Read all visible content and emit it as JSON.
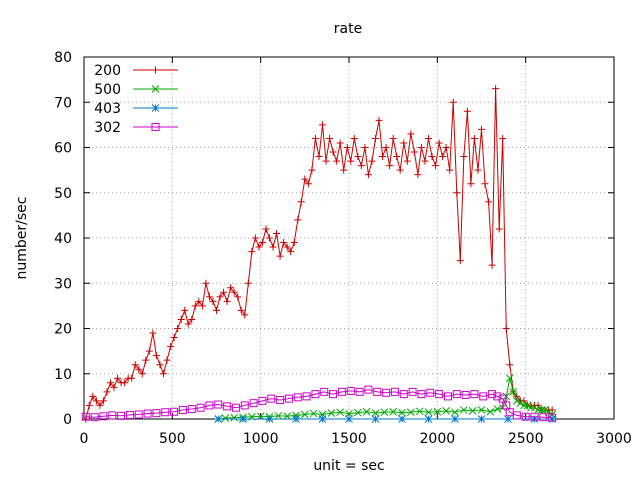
{
  "chart_data": {
    "type": "line",
    "title": "rate",
    "xlabel": "unit = sec",
    "ylabel": "number/sec",
    "xlim": [
      0,
      3000
    ],
    "ylim": [
      0,
      80
    ],
    "xticks": [
      0,
      500,
      1000,
      1500,
      2000,
      2500,
      3000
    ],
    "yticks": [
      0,
      10,
      20,
      30,
      40,
      50,
      60,
      70,
      80
    ],
    "grid": true,
    "legend_position": "top-left",
    "series": [
      {
        "name": "200",
        "color": "#cc0000",
        "marker": "plus",
        "points": [
          [
            10,
            0
          ],
          [
            30,
            3
          ],
          [
            50,
            5
          ],
          [
            70,
            4
          ],
          [
            90,
            3
          ],
          [
            110,
            4
          ],
          [
            130,
            6
          ],
          [
            150,
            8
          ],
          [
            170,
            7
          ],
          [
            190,
            9
          ],
          [
            210,
            8
          ],
          [
            230,
            8
          ],
          [
            250,
            9
          ],
          [
            270,
            9
          ],
          [
            290,
            12
          ],
          [
            310,
            11
          ],
          [
            330,
            10
          ],
          [
            350,
            13
          ],
          [
            370,
            15
          ],
          [
            390,
            19
          ],
          [
            410,
            14
          ],
          [
            430,
            12
          ],
          [
            450,
            10
          ],
          [
            470,
            13
          ],
          [
            490,
            16
          ],
          [
            510,
            18
          ],
          [
            530,
            20
          ],
          [
            550,
            22
          ],
          [
            570,
            24
          ],
          [
            590,
            21
          ],
          [
            610,
            22
          ],
          [
            630,
            25
          ],
          [
            650,
            26
          ],
          [
            670,
            25
          ],
          [
            690,
            30
          ],
          [
            710,
            27
          ],
          [
            730,
            26
          ],
          [
            750,
            24
          ],
          [
            770,
            27
          ],
          [
            790,
            28
          ],
          [
            810,
            26
          ],
          [
            830,
            29
          ],
          [
            850,
            28
          ],
          [
            870,
            27
          ],
          [
            890,
            24
          ],
          [
            910,
            23
          ],
          [
            930,
            30
          ],
          [
            950,
            37
          ],
          [
            970,
            40
          ],
          [
            990,
            38
          ],
          [
            1010,
            39
          ],
          [
            1030,
            42
          ],
          [
            1050,
            40
          ],
          [
            1070,
            38
          ],
          [
            1090,
            41
          ],
          [
            1110,
            36
          ],
          [
            1130,
            39
          ],
          [
            1150,
            38
          ],
          [
            1170,
            37
          ],
          [
            1190,
            39
          ],
          [
            1210,
            44
          ],
          [
            1230,
            48
          ],
          [
            1250,
            53
          ],
          [
            1270,
            52
          ],
          [
            1290,
            55
          ],
          [
            1310,
            62
          ],
          [
            1330,
            58
          ],
          [
            1350,
            65
          ],
          [
            1370,
            57
          ],
          [
            1390,
            62
          ],
          [
            1410,
            59
          ],
          [
            1430,
            57
          ],
          [
            1450,
            61
          ],
          [
            1470,
            55
          ],
          [
            1490,
            60
          ],
          [
            1510,
            57
          ],
          [
            1530,
            62
          ],
          [
            1550,
            58
          ],
          [
            1570,
            56
          ],
          [
            1590,
            60
          ],
          [
            1610,
            54
          ],
          [
            1630,
            57
          ],
          [
            1650,
            62
          ],
          [
            1670,
            66
          ],
          [
            1690,
            58
          ],
          [
            1710,
            60
          ],
          [
            1730,
            56
          ],
          [
            1750,
            62
          ],
          [
            1770,
            58
          ],
          [
            1790,
            55
          ],
          [
            1810,
            61
          ],
          [
            1830,
            57
          ],
          [
            1850,
            63
          ],
          [
            1870,
            59
          ],
          [
            1890,
            54
          ],
          [
            1910,
            60
          ],
          [
            1930,
            57
          ],
          [
            1950,
            62
          ],
          [
            1970,
            58
          ],
          [
            1990,
            56
          ],
          [
            2010,
            61
          ],
          [
            2030,
            58
          ],
          [
            2050,
            60
          ],
          [
            2070,
            55
          ],
          [
            2090,
            70
          ],
          [
            2110,
            50
          ],
          [
            2130,
            35
          ],
          [
            2150,
            58
          ],
          [
            2170,
            68
          ],
          [
            2190,
            52
          ],
          [
            2210,
            62
          ],
          [
            2230,
            55
          ],
          [
            2250,
            64
          ],
          [
            2270,
            52
          ],
          [
            2290,
            48
          ],
          [
            2310,
            34
          ],
          [
            2330,
            73
          ],
          [
            2350,
            42
          ],
          [
            2370,
            62
          ],
          [
            2390,
            20
          ],
          [
            2410,
            12
          ],
          [
            2430,
            6
          ],
          [
            2450,
            5
          ],
          [
            2470,
            4
          ],
          [
            2490,
            4
          ],
          [
            2510,
            3
          ],
          [
            2530,
            3
          ],
          [
            2550,
            3
          ],
          [
            2570,
            3
          ],
          [
            2590,
            2
          ],
          [
            2610,
            2
          ],
          [
            2630,
            2
          ],
          [
            2650,
            2
          ]
        ]
      },
      {
        "name": "500",
        "color": "#00aa00",
        "marker": "cross",
        "points": [
          [
            760,
            0
          ],
          [
            800,
            0.2
          ],
          [
            850,
            0.3
          ],
          [
            900,
            0.4
          ],
          [
            950,
            0.5
          ],
          [
            1000,
            0.6
          ],
          [
            1050,
            0.5
          ],
          [
            1100,
            0.7
          ],
          [
            1150,
            0.6
          ],
          [
            1200,
            0.8
          ],
          [
            1250,
            1
          ],
          [
            1300,
            1.2
          ],
          [
            1350,
            1
          ],
          [
            1400,
            1.3
          ],
          [
            1450,
            1.5
          ],
          [
            1500,
            1.2
          ],
          [
            1550,
            1.4
          ],
          [
            1600,
            1.6
          ],
          [
            1650,
            1.3
          ],
          [
            1700,
            1.5
          ],
          [
            1750,
            1.6
          ],
          [
            1800,
            1.4
          ],
          [
            1850,
            1.5
          ],
          [
            1900,
            1.7
          ],
          [
            1950,
            1.5
          ],
          [
            2000,
            1.6
          ],
          [
            2050,
            1.8
          ],
          [
            2100,
            1.5
          ],
          [
            2150,
            2
          ],
          [
            2200,
            1.8
          ],
          [
            2250,
            2
          ],
          [
            2300,
            1.6
          ],
          [
            2340,
            2.2
          ],
          [
            2370,
            2.5
          ],
          [
            2390,
            5
          ],
          [
            2410,
            9
          ],
          [
            2430,
            6
          ],
          [
            2450,
            4
          ],
          [
            2470,
            3.5
          ],
          [
            2490,
            3
          ],
          [
            2510,
            3
          ],
          [
            2530,
            2.5
          ],
          [
            2550,
            2.5
          ],
          [
            2570,
            2
          ],
          [
            2590,
            2
          ],
          [
            2610,
            2
          ],
          [
            2630,
            1.5
          ],
          [
            2650,
            1
          ]
        ]
      },
      {
        "name": "403",
        "color": "#0077cc",
        "marker": "star",
        "points": [
          [
            760,
            0
          ],
          [
            900,
            0
          ],
          [
            1050,
            0
          ],
          [
            1200,
            0
          ],
          [
            1350,
            0
          ],
          [
            1500,
            0
          ],
          [
            1650,
            0
          ],
          [
            1800,
            0
          ],
          [
            1950,
            0
          ],
          [
            2100,
            0
          ],
          [
            2250,
            0
          ],
          [
            2400,
            0
          ],
          [
            2550,
            0
          ],
          [
            2650,
            0
          ]
        ]
      },
      {
        "name": "302",
        "color": "#cc00cc",
        "marker": "square",
        "points": [
          [
            10,
            0.5
          ],
          [
            60,
            0.4
          ],
          [
            110,
            0.6
          ],
          [
            160,
            0.8
          ],
          [
            210,
            0.7
          ],
          [
            260,
            0.9
          ],
          [
            310,
            1
          ],
          [
            360,
            1.2
          ],
          [
            410,
            1.3
          ],
          [
            460,
            1.5
          ],
          [
            510,
            1.6
          ],
          [
            560,
            2
          ],
          [
            610,
            2.2
          ],
          [
            660,
            2.5
          ],
          [
            710,
            3
          ],
          [
            760,
            3.2
          ],
          [
            810,
            2.8
          ],
          [
            860,
            2.5
          ],
          [
            910,
            3
          ],
          [
            960,
            3.5
          ],
          [
            1010,
            4
          ],
          [
            1060,
            4.5
          ],
          [
            1110,
            4.2
          ],
          [
            1160,
            4.5
          ],
          [
            1210,
            4.8
          ],
          [
            1260,
            5
          ],
          [
            1310,
            5.5
          ],
          [
            1360,
            6
          ],
          [
            1410,
            5.5
          ],
          [
            1460,
            6
          ],
          [
            1510,
            6.2
          ],
          [
            1560,
            6
          ],
          [
            1610,
            6.5
          ],
          [
            1660,
            6
          ],
          [
            1710,
            5.8
          ],
          [
            1760,
            6
          ],
          [
            1810,
            5.5
          ],
          [
            1860,
            6
          ],
          [
            1910,
            5.5
          ],
          [
            1960,
            5.8
          ],
          [
            2010,
            5.5
          ],
          [
            2060,
            5
          ],
          [
            2110,
            5.5
          ],
          [
            2160,
            5.3
          ],
          [
            2210,
            5.5
          ],
          [
            2260,
            5
          ],
          [
            2310,
            5.5
          ],
          [
            2340,
            5
          ],
          [
            2370,
            4.5
          ],
          [
            2390,
            3
          ],
          [
            2410,
            1.5
          ],
          [
            2450,
            0.8
          ],
          [
            2500,
            0.5
          ],
          [
            2550,
            0.5
          ],
          [
            2600,
            0.4
          ],
          [
            2650,
            0.3
          ]
        ]
      }
    ]
  }
}
